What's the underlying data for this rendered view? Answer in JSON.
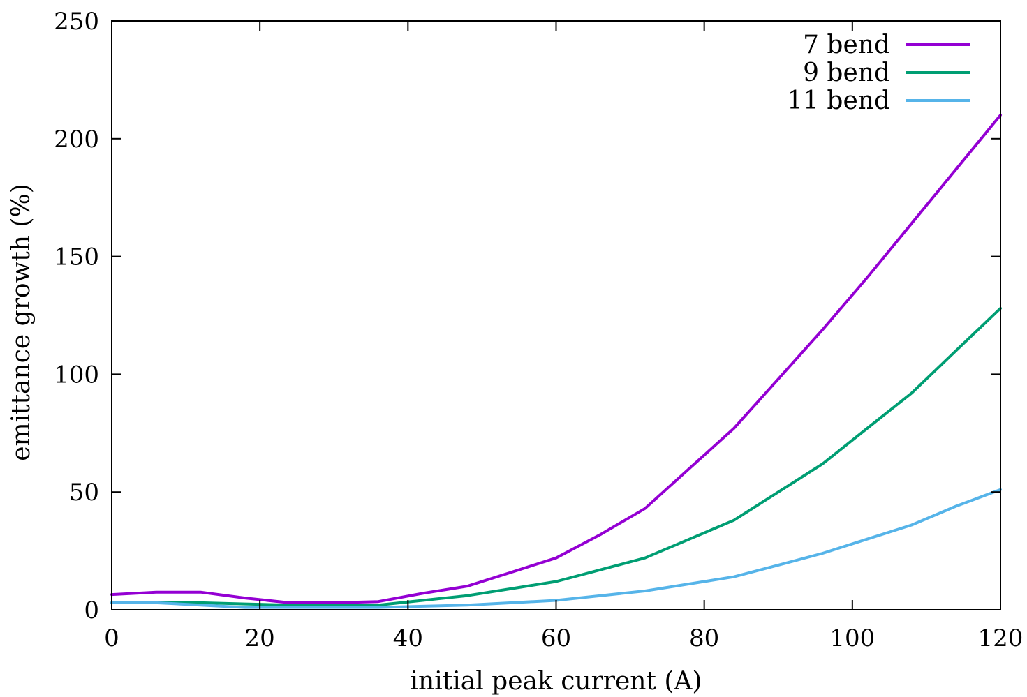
{
  "chart_data": {
    "type": "line",
    "title": "",
    "xlabel": "initial peak current (A)",
    "ylabel": "emittance growth (%)",
    "xlim": [
      0,
      120
    ],
    "ylim": [
      0,
      250
    ],
    "xticks": [
      0,
      20,
      40,
      60,
      80,
      100,
      120
    ],
    "yticks": [
      0,
      50,
      100,
      150,
      200,
      250
    ],
    "xtick_labels": [
      "0",
      "20",
      "40",
      "60",
      "80",
      "100",
      "120"
    ],
    "ytick_labels": [
      "0",
      "50",
      "100",
      "150",
      "200",
      "250"
    ],
    "grid": false,
    "legend_position": "top-right",
    "series": [
      {
        "name": "7 bend",
        "color": "#9400d3",
        "x": [
          0,
          6,
          12,
          18,
          24,
          30,
          36,
          42,
          48,
          54,
          60,
          66,
          72,
          78,
          84,
          90,
          96,
          102,
          108,
          114,
          120
        ],
        "y": [
          6.5,
          7.5,
          7.5,
          5,
          3,
          3,
          3.5,
          7,
          10,
          16,
          22,
          32,
          43,
          60,
          77,
          98,
          119,
          141,
          164,
          187,
          210
        ]
      },
      {
        "name": "9 bend",
        "color": "#009e73",
        "x": [
          0,
          6,
          12,
          18,
          24,
          30,
          36,
          42,
          48,
          54,
          60,
          66,
          72,
          78,
          84,
          90,
          96,
          102,
          108,
          114,
          120
        ],
        "y": [
          3,
          3,
          3,
          2.5,
          2,
          2,
          2,
          4,
          6,
          9,
          12,
          17,
          22,
          30,
          38,
          50,
          62,
          77,
          92,
          110,
          128
        ]
      },
      {
        "name": "11 bend",
        "color": "#56b4e9",
        "x": [
          0,
          6,
          12,
          18,
          24,
          30,
          36,
          42,
          48,
          54,
          60,
          66,
          72,
          78,
          84,
          90,
          96,
          102,
          108,
          114,
          120
        ],
        "y": [
          3,
          3,
          2,
          1,
          1,
          1,
          1,
          1.5,
          2,
          3,
          4,
          6,
          8,
          11,
          14,
          19,
          24,
          30,
          36,
          44,
          51
        ]
      }
    ]
  }
}
